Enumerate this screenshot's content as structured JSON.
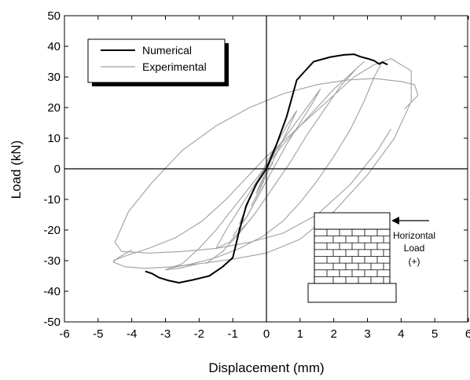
{
  "chart_data": {
    "type": "line",
    "xlabel": "Displacement (mm)",
    "ylabel": "Load (kN)",
    "xlim": [
      -6,
      6
    ],
    "ylim": [
      -50,
      50
    ],
    "xticks": [
      -6,
      -5,
      -4,
      -3,
      -2,
      -1,
      0,
      1,
      2,
      3,
      4,
      5,
      6
    ],
    "yticks": [
      -50,
      -40,
      -30,
      -20,
      -10,
      0,
      10,
      20,
      30,
      40,
      50
    ],
    "grid": false,
    "legend_position": "top-left",
    "series": [
      {
        "name": "Numerical",
        "color": "#000000",
        "x": [
          -3.6,
          -3.4,
          -3.2,
          -2.9,
          -2.6,
          -2.2,
          -1.7,
          -1.3,
          -1.0,
          -0.8,
          -0.6,
          -0.3,
          0.0,
          0.3,
          0.6,
          0.9,
          1.4,
          1.9,
          2.3,
          2.6,
          2.8,
          3.0,
          3.2,
          3.35,
          3.45,
          3.6
        ],
        "y": [
          -33.5,
          -34.2,
          -35.5,
          -36.5,
          -37.2,
          -36.3,
          -35.0,
          -32.0,
          -29.0,
          -20.0,
          -12.0,
          -5.0,
          0.0,
          8.0,
          17.0,
          29.0,
          35.0,
          36.5,
          37.2,
          37.4,
          36.6,
          36.0,
          35.3,
          34.2,
          34.8,
          34.0
        ]
      },
      {
        "name": "Experimental",
        "color": "#a0a0a0",
        "loops": [
          {
            "x": [
              -0.2,
              0.0,
              0.15,
              0.3,
              0.15,
              0.0,
              -0.15,
              -0.3,
              -0.15,
              0.0,
              0.2
            ],
            "y": [
              -3,
              1,
              4,
              7,
              3,
              -1,
              -4,
              -8,
              -5,
              -1,
              2
            ]
          },
          {
            "x": [
              -0.45,
              -0.2,
              0.0,
              0.3,
              0.6,
              0.9,
              0.6,
              0.3,
              0.0,
              -0.2,
              -0.5,
              -0.8,
              -0.6,
              -0.3,
              0.0
            ],
            "y": [
              -12,
              -7,
              -2,
              5,
              12,
              19,
              14,
              8,
              2,
              -3,
              -10,
              -18,
              -16,
              -10,
              -4
            ]
          },
          {
            "x": [
              -1.0,
              -0.6,
              -0.2,
              0.2,
              0.6,
              1.0,
              1.4,
              1.6,
              1.2,
              0.8,
              0.4,
              0.0,
              -0.4,
              -0.8,
              -1.2,
              -1.5,
              -1.1,
              -0.6
            ],
            "y": [
              -22,
              -16,
              -8,
              0,
              8,
              15,
              22,
              26,
              20,
              14,
              8,
              1,
              -6,
              -13,
              -20,
              -26,
              -24,
              -18
            ]
          },
          {
            "x": [
              -1.8,
              -1.3,
              -0.8,
              -0.3,
              0.2,
              0.7,
              1.2,
              1.7,
              2.2,
              2.7,
              2.9,
              2.5,
              2.0,
              1.5,
              1.0,
              0.5,
              0.0,
              -0.5,
              -1.0,
              -1.5,
              -2.0,
              -2.5,
              -3.0,
              -2.6,
              -2.0
            ],
            "y": [
              -31,
              -27,
              -21,
              -14,
              -6,
              2,
              11,
              19,
              27,
              33,
              35,
              31,
              26,
              20,
              14,
              8,
              1,
              -6,
              -13,
              -20,
              -26,
              -31,
              -33,
              -32.5,
              -31
            ]
          },
          {
            "x": [
              -2.9,
              -2.2,
              -1.5,
              -0.8,
              -0.1,
              0.5,
              1.0,
              1.5,
              2.0,
              2.5,
              2.9,
              3.2,
              3.4
            ],
            "y": [
              -32.5,
              -31,
              -29,
              -26,
              -22,
              -17,
              -11,
              -4,
              4,
              13,
              22,
              30,
              34
            ]
          },
          {
            "x": [
              -4.0,
              -4.4,
              -4.55,
              -4.2,
              -3.6,
              -2.8,
              -2.0,
              -1.0,
              0.0,
              1.0,
              2.0,
              3.0,
              3.8,
              4.3,
              4.3,
              3.7,
              3.2,
              2.6,
              2.0,
              1.3,
              0.6,
              0.0,
              -0.6,
              -1.2,
              -1.9,
              -2.7,
              -3.5,
              -4.2,
              -4.55
            ],
            "y": [
              -26.5,
              -29.0,
              -30.5,
              -32.0,
              -32.5,
              -32.0,
              -31.0,
              -29.5,
              -27.5,
              -23.0,
              -14.0,
              -2.0,
              10.0,
              22.0,
              32.0,
              36.0,
              34.0,
              30.0,
              24.0,
              17.0,
              10.0,
              4.0,
              -3.0,
              -10.0,
              -17.0,
              -22.5,
              -26.0,
              -28.5,
              -30.0
            ]
          },
          {
            "x": [
              4.1,
              4.5,
              4.4,
              4.0,
              3.2,
              2.4,
              1.5,
              0.5,
              -0.5,
              -1.5,
              -2.5,
              -3.4,
              -4.1,
              -4.5,
              -4.3,
              -3.5,
              -2.5,
              -1.5,
              -0.5,
              0.5,
              1.5,
              2.5,
              3.3,
              3.7
            ],
            "y": [
              19.5,
              24.0,
              27.5,
              28.5,
              29.5,
              29.0,
              27.5,
              24.5,
              20.0,
              14.0,
              6.0,
              -4.5,
              -14.0,
              -24.0,
              -27.0,
              -27.5,
              -27.0,
              -26.0,
              -24.0,
              -21.0,
              -15.0,
              -5.0,
              6.0,
              13.0
            ]
          }
        ]
      }
    ],
    "inset": {
      "arrow_label": [
        "Horizontal",
        "Load",
        "(+)"
      ]
    }
  }
}
